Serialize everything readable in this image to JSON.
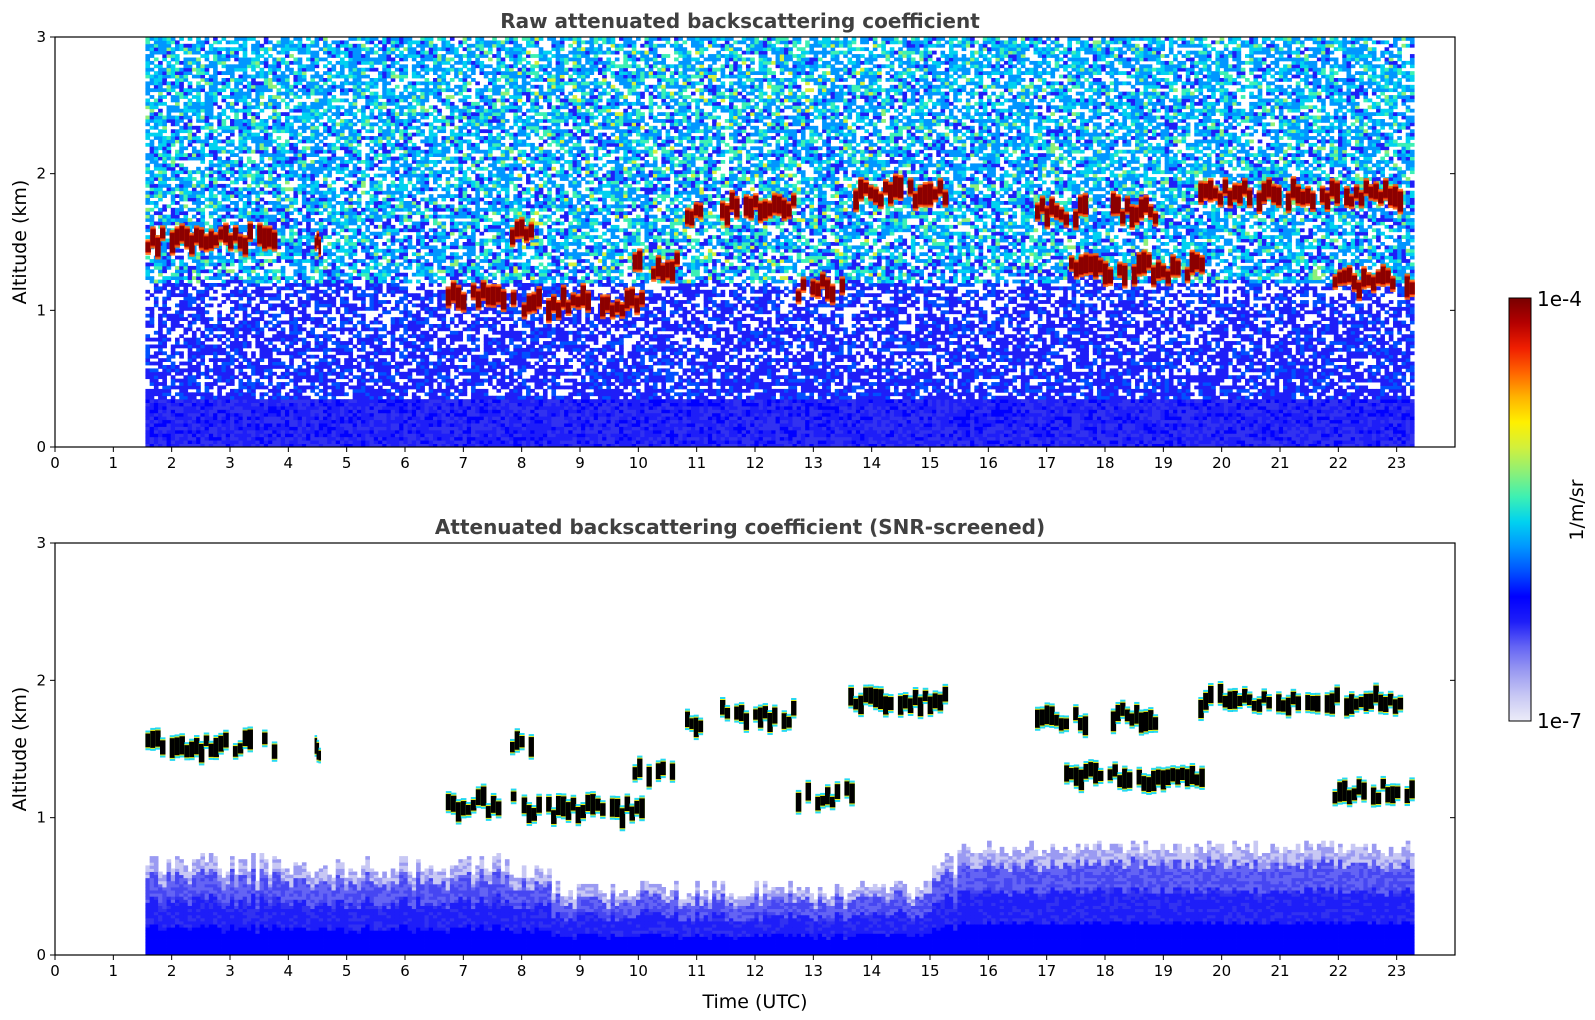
{
  "chart_data": [
    {
      "type": "heatmap",
      "title": "Raw attenuated backscattering coefficient",
      "ylabel": "Altitude (km)",
      "xlabel": "",
      "xlim": [
        0,
        24
      ],
      "ylim": [
        0,
        3
      ],
      "xticks": [
        0,
        1,
        2,
        3,
        4,
        5,
        6,
        7,
        8,
        9,
        10,
        11,
        12,
        13,
        14,
        15,
        16,
        17,
        18,
        19,
        20,
        21,
        22,
        23
      ],
      "yticks": [
        0,
        1,
        2,
        3
      ],
      "data_time_range": [
        1.55,
        23.3
      ],
      "background": "noisy",
      "cloud_layers": [
        {
          "t0": 1.55,
          "t1": 3.8,
          "alt": 1.52
        },
        {
          "t0": 4.45,
          "t1": 4.55,
          "alt": 1.47
        },
        {
          "t0": 7.8,
          "t1": 8.2,
          "alt": 1.56
        },
        {
          "t0": 6.7,
          "t1": 7.9,
          "alt": 1.1
        },
        {
          "t0": 8.0,
          "t1": 10.1,
          "alt": 1.05
        },
        {
          "t0": 9.9,
          "t1": 10.7,
          "alt": 1.32
        },
        {
          "t0": 10.8,
          "t1": 11.1,
          "alt": 1.7
        },
        {
          "t0": 11.4,
          "t1": 12.7,
          "alt": 1.75
        },
        {
          "t0": 12.7,
          "t1": 13.7,
          "alt": 1.16
        },
        {
          "t0": 13.6,
          "t1": 15.3,
          "alt": 1.85
        },
        {
          "t0": 16.8,
          "t1": 17.7,
          "alt": 1.72
        },
        {
          "t0": 17.3,
          "t1": 19.7,
          "alt": 1.3
        },
        {
          "t0": 18.1,
          "t1": 18.9,
          "alt": 1.73
        },
        {
          "t0": 19.6,
          "t1": 23.1,
          "alt": 1.85
        },
        {
          "t0": 21.9,
          "t1": 23.3,
          "alt": 1.2
        }
      ]
    },
    {
      "type": "heatmap",
      "title": "Attenuated backscattering coefficient (SNR-screened)",
      "ylabel": "Altitude (km)",
      "xlabel": "Time (UTC)",
      "xlim": [
        0,
        24
      ],
      "ylim": [
        0,
        3
      ],
      "xticks": [
        0,
        1,
        2,
        3,
        4,
        5,
        6,
        7,
        8,
        9,
        10,
        11,
        12,
        13,
        14,
        15,
        16,
        17,
        18,
        19,
        20,
        21,
        22,
        23
      ],
      "yticks": [
        0,
        1,
        2,
        3
      ],
      "data_time_range": [
        1.55,
        23.3
      ],
      "background": "screened",
      "cloud_layers": [
        {
          "t0": 1.55,
          "t1": 3.8,
          "alt": 1.52
        },
        {
          "t0": 4.45,
          "t1": 4.55,
          "alt": 1.47
        },
        {
          "t0": 7.8,
          "t1": 8.2,
          "alt": 1.56
        },
        {
          "t0": 6.7,
          "t1": 7.9,
          "alt": 1.1
        },
        {
          "t0": 8.0,
          "t1": 10.1,
          "alt": 1.05
        },
        {
          "t0": 9.9,
          "t1": 10.7,
          "alt": 1.32
        },
        {
          "t0": 10.8,
          "t1": 11.1,
          "alt": 1.7
        },
        {
          "t0": 11.4,
          "t1": 12.7,
          "alt": 1.75
        },
        {
          "t0": 12.7,
          "t1": 13.7,
          "alt": 1.16
        },
        {
          "t0": 13.6,
          "t1": 15.3,
          "alt": 1.85
        },
        {
          "t0": 16.8,
          "t1": 17.7,
          "alt": 1.72
        },
        {
          "t0": 17.3,
          "t1": 19.7,
          "alt": 1.3
        },
        {
          "t0": 18.1,
          "t1": 18.9,
          "alt": 1.73
        },
        {
          "t0": 19.6,
          "t1": 23.1,
          "alt": 1.85
        },
        {
          "t0": 21.9,
          "t1": 23.3,
          "alt": 1.2
        }
      ]
    }
  ],
  "colorbar": {
    "label": "1/m/sr",
    "max_label": "1e-4",
    "min_label": "1e-7",
    "colors": [
      "#ececf8",
      "#c8c8f4",
      "#9a9af2",
      "#6464f4",
      "#1e1ef8",
      "#0000ff",
      "#0050ff",
      "#0096ff",
      "#00d2f0",
      "#3cf0b4",
      "#8cf078",
      "#d2f03c",
      "#fff000",
      "#ffb400",
      "#ff6400",
      "#f01e00",
      "#b40000",
      "#780000"
    ]
  }
}
